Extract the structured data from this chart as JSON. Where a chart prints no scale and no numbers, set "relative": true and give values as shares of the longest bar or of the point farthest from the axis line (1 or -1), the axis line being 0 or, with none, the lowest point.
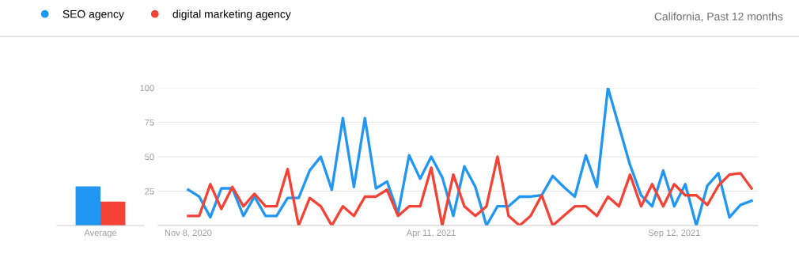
{
  "chart_data": [
    {
      "type": "bar",
      "relative": true,
      "categories": [
        "Average"
      ],
      "grid": false,
      "series": [
        {
          "color": "#2196f3",
          "values": [
            1
          ]
        },
        {
          "color": "#f44336",
          "values": [
            0.61
          ]
        }
      ]
    },
    {
      "type": "line",
      "subtitle": "California, Past 12 months",
      "legend": "top left",
      "grid": "y",
      "marker": "none",
      "line_style": "solid",
      "x": [
        "2020-11-08",
        "2020-11-15",
        "2020-11-22",
        "2020-11-29",
        "2020-12-06",
        "2020-12-13",
        "2020-12-20",
        "2020-12-27",
        "2021-01-03",
        "2021-01-10",
        "2021-01-17",
        "2021-01-24",
        "2021-01-31",
        "2021-02-07",
        "2021-02-14",
        "2021-02-21",
        "2021-02-28",
        "2021-03-07",
        "2021-03-14",
        "2021-03-21",
        "2021-03-28",
        "2021-04-04",
        "2021-04-11",
        "2021-04-18",
        "2021-04-25",
        "2021-05-02",
        "2021-05-09",
        "2021-05-16",
        "2021-05-23",
        "2021-05-30",
        "2021-06-06",
        "2021-06-13",
        "2021-06-20",
        "2021-06-27",
        "2021-07-04",
        "2021-07-11",
        "2021-07-18",
        "2021-07-25",
        "2021-08-01",
        "2021-08-08",
        "2021-08-15",
        "2021-08-22",
        "2021-08-29",
        "2021-09-05",
        "2021-09-12",
        "2021-09-19",
        "2021-09-26",
        "2021-10-03",
        "2021-10-10",
        "2021-10-17",
        "2021-10-24",
        "2021-10-31"
      ],
      "xlim": [
        "2020-10-20",
        "2021-11-04"
      ],
      "xticks": [
        {
          "value": "2020-11-08",
          "label": "Nov 8, 2020"
        },
        {
          "value": "2021-04-11",
          "label": "Apr 11, 2021"
        },
        {
          "value": "2021-09-12",
          "label": "Sep 12, 2021"
        }
      ],
      "ylim": [
        0,
        100
      ],
      "yticks": [
        {
          "value": 0,
          "label": null
        },
        25,
        50,
        75,
        100
      ],
      "series": [
        {
          "name": "SEO agency",
          "color": "#2196f3",
          "values": [
            26,
            21,
            6,
            27,
            27,
            7,
            21,
            7,
            7,
            20,
            20,
            40,
            50,
            26,
            78,
            28,
            78,
            27,
            32,
            9,
            51,
            34,
            50,
            35,
            7,
            43,
            28,
            0,
            14,
            14,
            21,
            21,
            22,
            36,
            28,
            21,
            51,
            28,
            100,
            72,
            44,
            22,
            14,
            40,
            14,
            30,
            0,
            29,
            38,
            6,
            15,
            18
          ]
        },
        {
          "name": "digital marketing agency",
          "color": "#f44336",
          "values": [
            7,
            7,
            30,
            12,
            28,
            14,
            23,
            14,
            14,
            41,
            0,
            20,
            14,
            0,
            14,
            7,
            21,
            21,
            26,
            7,
            14,
            14,
            42,
            0,
            37,
            14,
            7,
            14,
            50,
            7,
            0,
            7,
            22,
            0,
            7,
            14,
            14,
            7,
            21,
            14,
            37,
            14,
            30,
            14,
            30,
            22,
            22,
            15,
            29,
            37,
            38,
            27
          ]
        }
      ]
    }
  ]
}
